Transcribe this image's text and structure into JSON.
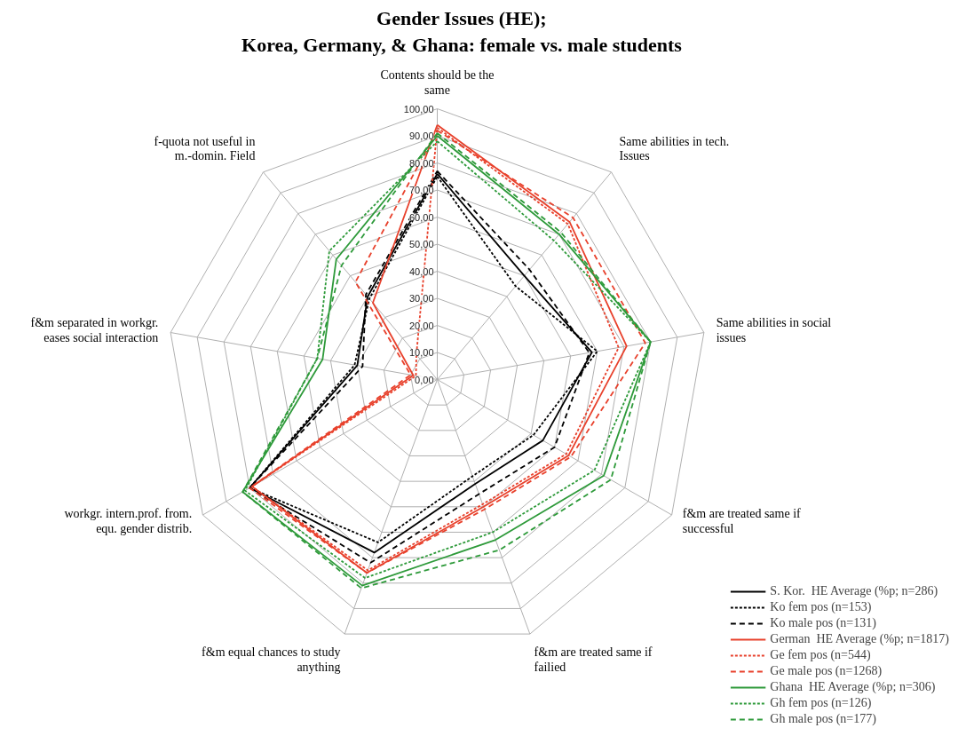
{
  "chart_data": {
    "type": "radar",
    "title": "Gender Issues (HE);\nKorea, Germany, & Ghana: female vs. male students",
    "categories": [
      "Contents should be the same",
      "Same abilities in tech. Issues",
      "Same abilities in social issues",
      "f&m are treated same if successful",
      "f&m are treated same if failied",
      "f&m equal chances to study anything",
      "workgr. intern.prof. from. equ. gender distrib.",
      "f&m separated in workgr. eases social interaction",
      "f-quota not useful in m.-domin. Field"
    ],
    "ylim": [
      0,
      100
    ],
    "yticks": [
      {
        "value": 0,
        "label": "0,00"
      },
      {
        "value": 10,
        "label": "10,00"
      },
      {
        "value": 20,
        "label": "20,00"
      },
      {
        "value": 30,
        "label": "30,00"
      },
      {
        "value": 40,
        "label": "40,00"
      },
      {
        "value": 50,
        "label": "50,00"
      },
      {
        "value": 60,
        "label": "60,00"
      },
      {
        "value": 70,
        "label": "70,00"
      },
      {
        "value": 80,
        "label": "80,00"
      },
      {
        "value": 90,
        "label": "90,00"
      },
      {
        "value": 100,
        "label": "100,00"
      }
    ],
    "grid": true,
    "legend": "bottom right",
    "marker": "none",
    "series": [
      {
        "name": "S. Kor.  HE Average (%p; n=286)",
        "color": "#000000",
        "line_style": "solid",
        "values": [
          76,
          50,
          58,
          45,
          41,
          68,
          80,
          30,
          40
        ]
      },
      {
        "name": "Ko fem pos (n=153)",
        "color": "#000000",
        "line_style": "dotted",
        "values": [
          75,
          45,
          60,
          41,
          38,
          64,
          80,
          31,
          39
        ]
      },
      {
        "name": "Ko male pos (n=131)",
        "color": "#000000",
        "line_style": "dashed",
        "values": [
          77,
          53,
          57,
          50,
          45,
          72,
          80,
          28,
          41
        ]
      },
      {
        "name": "German  HE Average (%p; n=1817)",
        "color": "#e8412c",
        "line_style": "solid",
        "values": [
          94,
          76,
          71,
          56,
          50,
          76,
          79,
          9,
          37
        ]
      },
      {
        "name": "Ge fem pos (n=544)",
        "color": "#e8412c",
        "line_style": "dotted",
        "values": [
          93,
          75,
          68,
          55,
          49,
          75,
          79,
          8,
          12
        ]
      },
      {
        "name": "Ge male pos (n=1268)",
        "color": "#e8412c",
        "line_style": "dashed",
        "values": [
          92,
          78,
          78,
          57,
          51,
          76,
          80,
          10,
          47
        ]
      },
      {
        "name": "Ghana  HE Average (%p; n=306)",
        "color": "#2e9a3a",
        "line_style": "solid",
        "values": [
          90,
          70,
          80,
          71,
          63,
          81,
          83,
          43,
          58
        ]
      },
      {
        "name": "Gh fem pos (n=126)",
        "color": "#2e9a3a",
        "line_style": "dotted",
        "values": [
          88,
          67,
          80,
          67,
          60,
          78,
          82,
          45,
          62
        ]
      },
      {
        "name": "Gh male pos (n=177)",
        "color": "#2e9a3a",
        "line_style": "dashed",
        "values": [
          91,
          71,
          80,
          74,
          67,
          82,
          83,
          45,
          55
        ]
      }
    ]
  }
}
